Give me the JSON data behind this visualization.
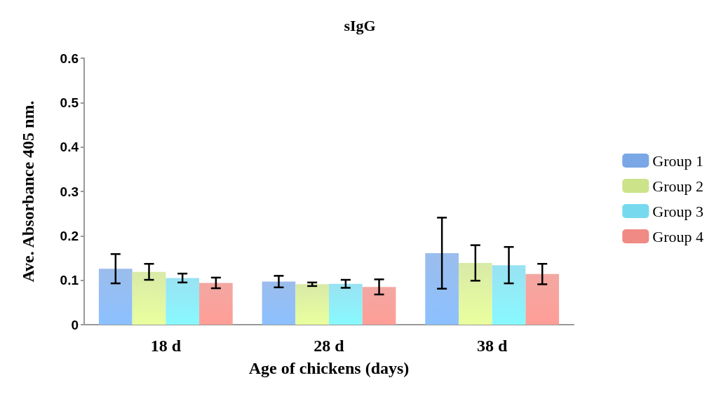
{
  "chart_data": {
    "type": "bar",
    "title": "sIgG",
    "xlabel": "Age of chickens (days)",
    "ylabel": "Ave. Absorbance 405 nm.",
    "categories": [
      "18 d",
      "28 d",
      "38 d"
    ],
    "series": [
      {
        "name": "Group 1",
        "color": "#7aa7e6",
        "values": [
          0.126,
          0.097,
          0.161
        ],
        "errors": [
          0.033,
          0.013,
          0.08
        ]
      },
      {
        "name": "Group 2",
        "color": "#cce38a",
        "values": [
          0.119,
          0.091,
          0.139
        ],
        "errors": [
          0.018,
          0.004,
          0.04
        ]
      },
      {
        "name": "Group 3",
        "color": "#77d9ee",
        "values": [
          0.105,
          0.092,
          0.134
        ],
        "errors": [
          0.01,
          0.009,
          0.041
        ]
      },
      {
        "name": "Group 4",
        "color": "#f08a84",
        "values": [
          0.094,
          0.085,
          0.114
        ],
        "errors": [
          0.012,
          0.017,
          0.023
        ]
      }
    ],
    "ylim": [
      0,
      0.6
    ],
    "yticks": [
      0,
      0.1,
      0.2,
      0.3,
      0.4,
      0.5,
      0.6
    ],
    "grid": false,
    "legend": "right"
  }
}
